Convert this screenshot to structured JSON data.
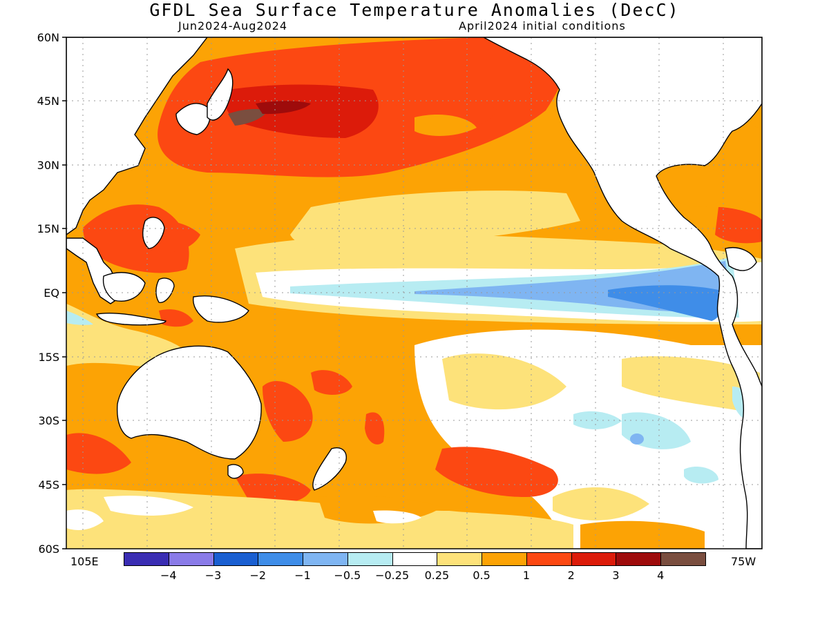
{
  "title": "GFDL Sea Surface Temperature Anomalies (DecC)",
  "subtitle_left": "Jun2024-Aug2024",
  "subtitle_right": "April2024 initial conditions",
  "lat_labels": [
    "60N",
    "45N",
    "30N",
    "15N",
    "EQ",
    "15S",
    "30S",
    "45S",
    "60S"
  ],
  "lon_labels": [
    "105E",
    "75W"
  ],
  "colorbar": {
    "colors": [
      "#3a2db3",
      "#8a7be8",
      "#1a5fd1",
      "#3f8de8",
      "#7fb5f2",
      "#b7ecf2",
      "#ffffff",
      "#fde27a",
      "#fca305",
      "#fc4812",
      "#dc1b0a",
      "#9e0b0b",
      "#7a4e3f"
    ],
    "labels": [
      "-4",
      "-3",
      "-2",
      "-1",
      "-0.5",
      "-0.25",
      "0.25",
      "0.5",
      "1",
      "2",
      "3",
      "4"
    ]
  }
}
